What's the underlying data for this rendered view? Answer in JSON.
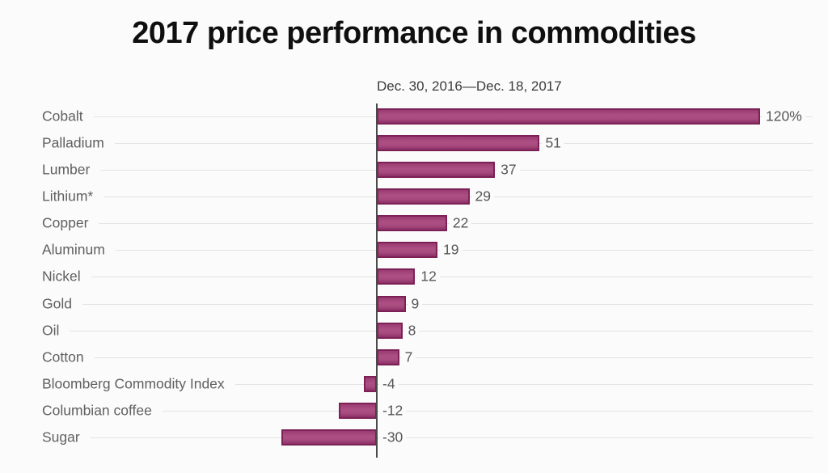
{
  "header": {
    "title": "2017 price performance in commodities",
    "subtitle": "Dec. 30, 2016—Dec. 18, 2017"
  },
  "chart_data": {
    "type": "bar",
    "orientation": "horizontal",
    "title": "2017 price performance in commodities",
    "subtitle": "Dec. 30, 2016—Dec. 18, 2017",
    "categories": [
      "Cobalt",
      "Palladium",
      "Lumber",
      "Lithium*",
      "Copper",
      "Aluminum",
      "Nickel",
      "Gold",
      "Oil",
      "Cotton",
      "Bloomberg Commodity Index",
      "Columbian coffee",
      "Sugar"
    ],
    "values": [
      120,
      51,
      37,
      29,
      22,
      19,
      12,
      9,
      8,
      7,
      -4,
      -12,
      -30
    ],
    "value_labels": [
      "120%",
      "51",
      "37",
      "29",
      "22",
      "19",
      "12",
      "9",
      "8",
      "7",
      "-4",
      "-12",
      "-30"
    ],
    "unit": "percent",
    "xlim": [
      -30,
      120
    ],
    "baseline": 0,
    "grid": "horizontal-row-lines",
    "legend": "none",
    "colors": {
      "bar_fill": "#a74a7e",
      "bar_border": "#7c2156",
      "gridline": "#e3e3e3",
      "axis_line": "#4a4a4a",
      "category_label": "#606060",
      "value_label": "#565656",
      "title": "#0f0f0f",
      "subtitle": "#3b3b3b",
      "background": "#fbfbfb"
    }
  }
}
